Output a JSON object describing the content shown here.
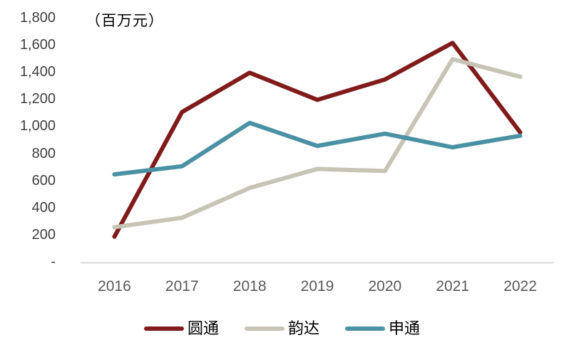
{
  "chart_data": {
    "type": "line",
    "unit_label": "（百万元）",
    "categories": [
      "2016",
      "2017",
      "2018",
      "2019",
      "2020",
      "2021",
      "2022"
    ],
    "series": [
      {
        "name": "圆通",
        "color": "#801B1B",
        "values": [
          190,
          1110,
          1400,
          1200,
          1350,
          1620,
          960
        ]
      },
      {
        "name": "韵达",
        "color": "#C7C4B6",
        "values": [
          260,
          330,
          550,
          690,
          675,
          1500,
          1370
        ]
      },
      {
        "name": "申通",
        "color": "#4B91A4",
        "values": [
          650,
          710,
          1030,
          860,
          950,
          850,
          935
        ]
      }
    ],
    "ylim": [
      0,
      1800
    ],
    "y_tick_step": 200,
    "y_tick_labels": [
      "-",
      "200",
      "400",
      "600",
      "800",
      "1,000",
      "1,200",
      "1,400",
      "1,600",
      "1,800"
    ],
    "grid": false,
    "legend_position": "bottom"
  },
  "colors": {
    "axis_line": "#D9D9D9",
    "y_tick_text": "#404040",
    "x_tick_text": "#595959",
    "legend_text": "#000000",
    "background": "#FFFFFF"
  }
}
